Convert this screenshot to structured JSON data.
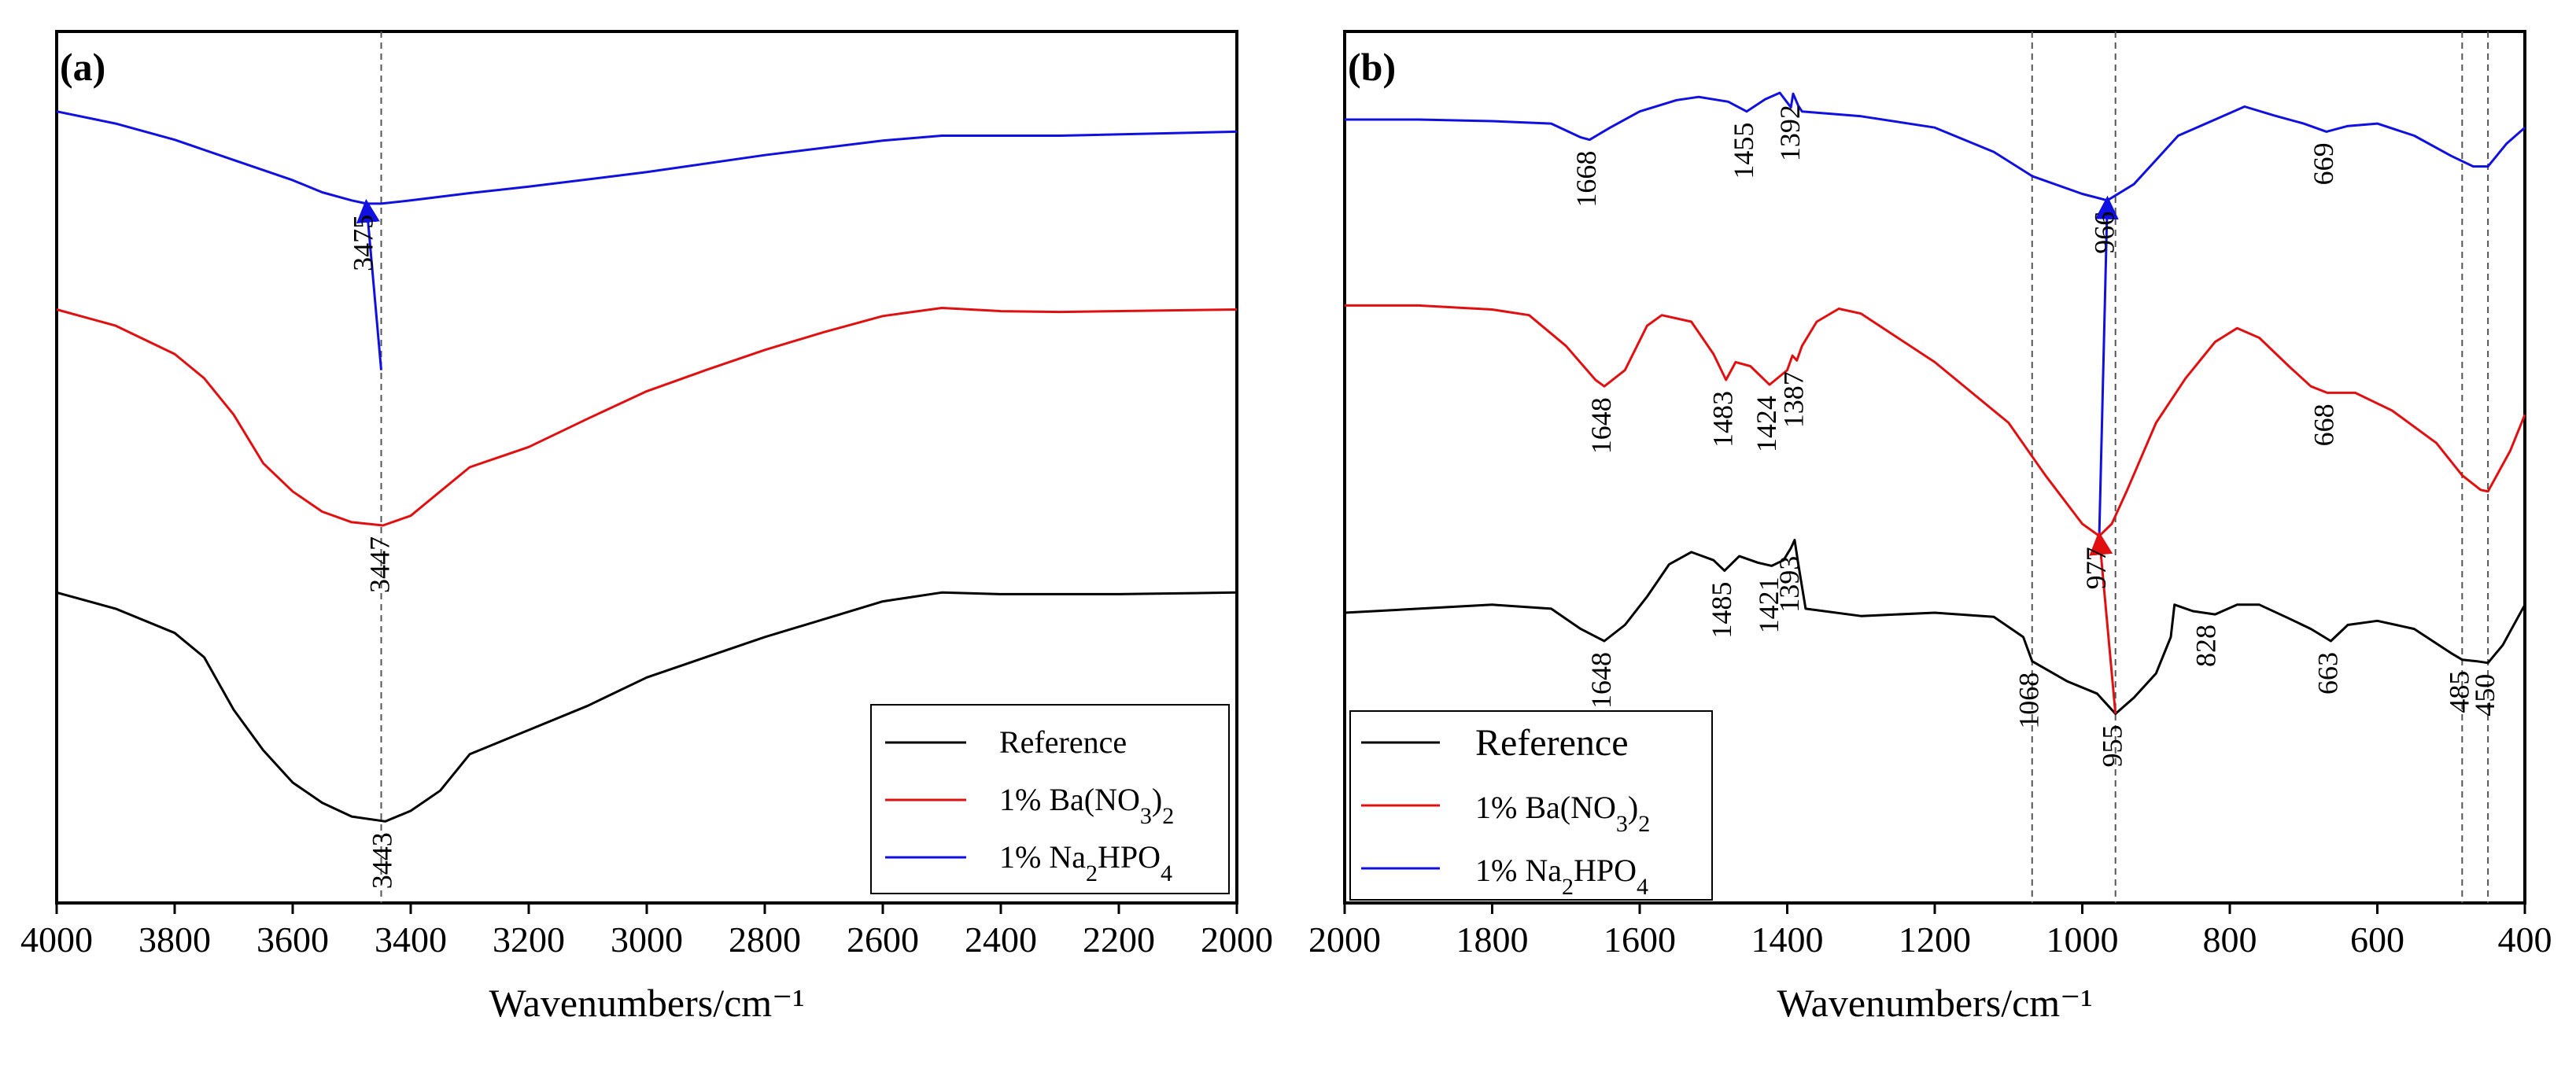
{
  "chart_data": [
    {
      "panel": "(a)",
      "type": "line",
      "xlabel": "Wavenumbers/cm⁻¹",
      "xlim": [
        4000,
        2000
      ],
      "xticks": [
        4000,
        3800,
        3600,
        3400,
        3200,
        3000,
        2800,
        2600,
        2400,
        2200,
        2000
      ],
      "y_relative_range": [
        0,
        1
      ],
      "vlines": [
        3450
      ],
      "series": [
        {
          "name": "1% Na2HPO4",
          "color": "#1010e0",
          "points": [
            [
              4000,
              0.94
            ],
            [
              3900,
              0.925
            ],
            [
              3800,
              0.905
            ],
            [
              3700,
              0.88
            ],
            [
              3600,
              0.855
            ],
            [
              3550,
              0.84
            ],
            [
              3500,
              0.83
            ],
            [
              3475,
              0.826
            ],
            [
              3450,
              0.826
            ],
            [
              3400,
              0.83
            ],
            [
              3300,
              0.839
            ],
            [
              3200,
              0.847
            ],
            [
              3000,
              0.865
            ],
            [
              2800,
              0.886
            ],
            [
              2600,
              0.904
            ],
            [
              2500,
              0.91
            ],
            [
              2300,
              0.91
            ],
            [
              2000,
              0.915
            ]
          ]
        },
        {
          "name": "1% Ba(NO3)2",
          "color": "#e01010",
          "points": [
            [
              4000,
              0.695
            ],
            [
              3900,
              0.675
            ],
            [
              3800,
              0.64
            ],
            [
              3750,
              0.61
            ],
            [
              3700,
              0.565
            ],
            [
              3650,
              0.505
            ],
            [
              3600,
              0.47
            ],
            [
              3550,
              0.445
            ],
            [
              3500,
              0.432
            ],
            [
              3447,
              0.428
            ],
            [
              3400,
              0.44
            ],
            [
              3350,
              0.47
            ],
            [
              3300,
              0.5
            ],
            [
              3200,
              0.525
            ],
            [
              3100,
              0.56
            ],
            [
              3000,
              0.594
            ],
            [
              2900,
              0.62
            ],
            [
              2800,
              0.645
            ],
            [
              2700,
              0.667
            ],
            [
              2600,
              0.687
            ],
            [
              2500,
              0.697
            ],
            [
              2400,
              0.693
            ],
            [
              2300,
              0.692
            ],
            [
              2000,
              0.695
            ]
          ]
        },
        {
          "name": "Reference",
          "color": "#000000",
          "points": [
            [
              4000,
              0.345
            ],
            [
              3900,
              0.325
            ],
            [
              3800,
              0.295
            ],
            [
              3750,
              0.265
            ],
            [
              3700,
              0.2
            ],
            [
              3650,
              0.15
            ],
            [
              3600,
              0.11
            ],
            [
              3550,
              0.085
            ],
            [
              3500,
              0.068
            ],
            [
              3443,
              0.062
            ],
            [
              3400,
              0.075
            ],
            [
              3350,
              0.1
            ],
            [
              3300,
              0.145
            ],
            [
              3200,
              0.175
            ],
            [
              3100,
              0.205
            ],
            [
              3000,
              0.24
            ],
            [
              2900,
              0.265
            ],
            [
              2800,
              0.29
            ],
            [
              2700,
              0.312
            ],
            [
              2600,
              0.334
            ],
            [
              2500,
              0.345
            ],
            [
              2400,
              0.343
            ],
            [
              2200,
              0.343
            ],
            [
              2000,
              0.345
            ]
          ]
        }
      ],
      "annotations": [
        {
          "text": "3475",
          "x": 3475,
          "series": "1% Na2HPO4"
        },
        {
          "text": "3447",
          "x": 3447,
          "series": "1% Ba(NO3)2"
        },
        {
          "text": "3443",
          "x": 3443,
          "series": "Reference"
        }
      ],
      "arrows": [
        {
          "from": [
            3450,
            0.62
          ],
          "to": [
            3475,
            0.826
          ],
          "color": "#1010e0"
        }
      ],
      "legend": {
        "position": "lower-right",
        "entries": [
          {
            "label": "Reference",
            "color": "#000000"
          },
          {
            "label": "1% Ba(NO3)2",
            "color": "#e01010"
          },
          {
            "label": "1% Na2HPO4",
            "color": "#1010e0"
          }
        ]
      }
    },
    {
      "panel": "(b)",
      "type": "line",
      "xlabel": "Wavenumbers/cm⁻¹",
      "xlim": [
        2000,
        400
      ],
      "xticks": [
        2000,
        1800,
        1600,
        1400,
        1200,
        1000,
        800,
        600,
        400
      ],
      "y_relative_range": [
        0,
        1
      ],
      "vlines": [
        1068,
        955,
        485,
        450
      ],
      "series": [
        {
          "name": "1% Na2HPO4",
          "color": "#1010e0",
          "points": [
            [
              2000,
              0.93
            ],
            [
              1900,
              0.93
            ],
            [
              1800,
              0.928
            ],
            [
              1720,
              0.925
            ],
            [
              1680,
              0.908
            ],
            [
              1668,
              0.905
            ],
            [
              1640,
              0.92
            ],
            [
              1600,
              0.94
            ],
            [
              1550,
              0.954
            ],
            [
              1520,
              0.958
            ],
            [
              1480,
              0.952
            ],
            [
              1455,
              0.94
            ],
            [
              1430,
              0.955
            ],
            [
              1410,
              0.963
            ],
            [
              1395,
              0.945
            ],
            [
              1392,
              0.962
            ],
            [
              1385,
              0.947
            ],
            [
              1380,
              0.94
            ],
            [
              1300,
              0.934
            ],
            [
              1200,
              0.92
            ],
            [
              1120,
              0.89
            ],
            [
              1068,
              0.86
            ],
            [
              1000,
              0.838
            ],
            [
              966,
              0.83
            ],
            [
              930,
              0.85
            ],
            [
              900,
              0.88
            ],
            [
              870,
              0.91
            ],
            [
              820,
              0.93
            ],
            [
              780,
              0.946
            ],
            [
              740,
              0.935
            ],
            [
              700,
              0.925
            ],
            [
              669,
              0.915
            ],
            [
              640,
              0.922
            ],
            [
              600,
              0.925
            ],
            [
              550,
              0.91
            ],
            [
              500,
              0.885
            ],
            [
              470,
              0.872
            ],
            [
              450,
              0.872
            ],
            [
              425,
              0.9
            ],
            [
              400,
              0.92
            ]
          ]
        },
        {
          "name": "1% Ba(NO3)2",
          "color": "#e01010",
          "points": [
            [
              2000,
              0.7
            ],
            [
              1900,
              0.7
            ],
            [
              1800,
              0.695
            ],
            [
              1750,
              0.688
            ],
            [
              1700,
              0.65
            ],
            [
              1660,
              0.608
            ],
            [
              1648,
              0.6
            ],
            [
              1620,
              0.62
            ],
            [
              1590,
              0.675
            ],
            [
              1570,
              0.688
            ],
            [
              1530,
              0.68
            ],
            [
              1500,
              0.64
            ],
            [
              1483,
              0.608
            ],
            [
              1470,
              0.63
            ],
            [
              1450,
              0.625
            ],
            [
              1424,
              0.602
            ],
            [
              1400,
              0.62
            ],
            [
              1393,
              0.638
            ],
            [
              1387,
              0.632
            ],
            [
              1380,
              0.65
            ],
            [
              1360,
              0.68
            ],
            [
              1330,
              0.696
            ],
            [
              1300,
              0.69
            ],
            [
              1200,
              0.63
            ],
            [
              1100,
              0.555
            ],
            [
              1050,
              0.49
            ],
            [
              1000,
              0.43
            ],
            [
              977,
              0.415
            ],
            [
              960,
              0.43
            ],
            [
              940,
              0.47
            ],
            [
              900,
              0.555
            ],
            [
              860,
              0.61
            ],
            [
              820,
              0.655
            ],
            [
              790,
              0.672
            ],
            [
              760,
              0.66
            ],
            [
              720,
              0.625
            ],
            [
              690,
              0.6
            ],
            [
              668,
              0.592
            ],
            [
              630,
              0.592
            ],
            [
              580,
              0.57
            ],
            [
              520,
              0.53
            ],
            [
              485,
              0.49
            ],
            [
              460,
              0.472
            ],
            [
              450,
              0.47
            ],
            [
              420,
              0.52
            ],
            [
              400,
              0.565
            ]
          ]
        },
        {
          "name": "Reference",
          "color": "#000000",
          "points": [
            [
              2000,
              0.32
            ],
            [
              1900,
              0.325
            ],
            [
              1800,
              0.33
            ],
            [
              1720,
              0.325
            ],
            [
              1680,
              0.3
            ],
            [
              1648,
              0.285
            ],
            [
              1620,
              0.305
            ],
            [
              1590,
              0.34
            ],
            [
              1560,
              0.38
            ],
            [
              1530,
              0.395
            ],
            [
              1500,
              0.385
            ],
            [
              1485,
              0.372
            ],
            [
              1465,
              0.39
            ],
            [
              1440,
              0.382
            ],
            [
              1421,
              0.378
            ],
            [
              1405,
              0.385
            ],
            [
              1395,
              0.4
            ],
            [
              1390,
              0.41
            ],
            [
              1385,
              0.38
            ],
            [
              1375,
              0.325
            ],
            [
              1300,
              0.316
            ],
            [
              1200,
              0.32
            ],
            [
              1120,
              0.315
            ],
            [
              1080,
              0.29
            ],
            [
              1068,
              0.26
            ],
            [
              1020,
              0.235
            ],
            [
              980,
              0.22
            ],
            [
              955,
              0.195
            ],
            [
              930,
              0.215
            ],
            [
              900,
              0.245
            ],
            [
              880,
              0.29
            ],
            [
              875,
              0.33
            ],
            [
              850,
              0.322
            ],
            [
              820,
              0.318
            ],
            [
              790,
              0.33
            ],
            [
              760,
              0.33
            ],
            [
              720,
              0.313
            ],
            [
              690,
              0.3
            ],
            [
              663,
              0.285
            ],
            [
              640,
              0.305
            ],
            [
              600,
              0.31
            ],
            [
              550,
              0.3
            ],
            [
              500,
              0.27
            ],
            [
              485,
              0.262
            ],
            [
              465,
              0.26
            ],
            [
              450,
              0.258
            ],
            [
              430,
              0.28
            ],
            [
              400,
              0.33
            ]
          ]
        }
      ],
      "annotations": [
        {
          "text": "1668",
          "x": 1668,
          "series": "1% Na2HPO4"
        },
        {
          "text": "1455",
          "x": 1455,
          "series": "1% Na2HPO4"
        },
        {
          "text": "1392",
          "x": 1392,
          "series": "1% Na2HPO4"
        },
        {
          "text": "966",
          "x": 966,
          "series": "1% Na2HPO4"
        },
        {
          "text": "669",
          "x": 669,
          "series": "1% Na2HPO4"
        },
        {
          "text": "1648",
          "x": 1648,
          "series": "1% Ba(NO3)2"
        },
        {
          "text": "1483",
          "x": 1483,
          "series": "1% Ba(NO3)2"
        },
        {
          "text": "1424",
          "x": 1424,
          "series": "1% Ba(NO3)2"
        },
        {
          "text": "1387",
          "x": 1387,
          "series": "1% Ba(NO3)2"
        },
        {
          "text": "977",
          "x": 977,
          "series": "1% Ba(NO3)2"
        },
        {
          "text": "668",
          "x": 668,
          "series": "1% Ba(NO3)2"
        },
        {
          "text": "1648",
          "x": 1648,
          "series": "Reference"
        },
        {
          "text": "1485",
          "x": 1485,
          "series": "Reference"
        },
        {
          "text": "1421",
          "x": 1421,
          "series": "Reference"
        },
        {
          "text": "1393",
          "x": 1393,
          "series": "Reference"
        },
        {
          "text": "1068",
          "x": 1068,
          "series": "Reference"
        },
        {
          "text": "955",
          "x": 955,
          "series": "Reference"
        },
        {
          "text": "828",
          "x": 828,
          "series": "Reference"
        },
        {
          "text": "663",
          "x": 663,
          "series": "Reference"
        },
        {
          "text": "485",
          "x": 485,
          "series": "Reference"
        },
        {
          "text": "450",
          "x": 450,
          "series": "Reference"
        }
      ],
      "arrows": [
        {
          "from": [
            977,
            0.415
          ],
          "to": [
            966,
            0.83
          ],
          "color": "#1010e0"
        },
        {
          "from": [
            955,
            0.195
          ],
          "to": [
            977,
            0.415
          ],
          "color": "#e01010"
        }
      ],
      "legend": {
        "position": "lower-left",
        "entries": [
          {
            "label": "Reference",
            "color": "#000000"
          },
          {
            "label": "1% Ba(NO3)2",
            "color": "#e01010"
          },
          {
            "label": "1% Na2HPO4",
            "color": "#1010e0"
          }
        ]
      }
    }
  ]
}
